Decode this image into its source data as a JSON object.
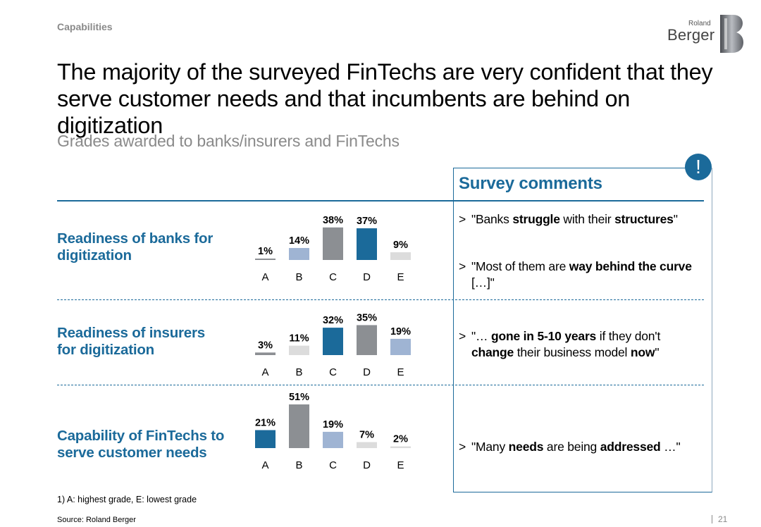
{
  "header": {
    "section": "Capabilities",
    "logo_top": "Roland",
    "logo_bottom": "Berger",
    "headline_line1": "The majority of the surveyed FinTechs are very confident that they",
    "headline_line2": "serve customer needs and that incumbents are behind on digitization",
    "subtitle": "Grades awarded to banks/insurers and FinTechs"
  },
  "colors": {
    "accent": "#1b6a9a",
    "light_blue": "#9fb4d3",
    "gray": "#8c8f93",
    "light_gray": "#dcdcdc"
  },
  "comments_panel": {
    "title": "Survey comments",
    "badge": "!",
    "comments": [
      {
        "marker": ">",
        "parts": [
          {
            "t": "\"Banks ",
            "b": false
          },
          {
            "t": "struggle",
            "b": true
          },
          {
            "t": " with their ",
            "b": false
          },
          {
            "t": "structures",
            "b": true
          },
          {
            "t": "\"",
            "b": false
          }
        ]
      },
      {
        "marker": ">",
        "parts": [
          {
            "t": "\"Most of them are ",
            "b": false
          },
          {
            "t": "way behind the curve",
            "b": true
          },
          {
            "t": " […]\"",
            "b": false
          }
        ]
      },
      {
        "marker": ">",
        "parts": [
          {
            "t": "\"… ",
            "b": false
          },
          {
            "t": "gone in 5-10 years",
            "b": true
          },
          {
            "t": " if they don't ",
            "b": false
          },
          {
            "t": "change",
            "b": true
          },
          {
            "t": " their business model ",
            "b": false
          },
          {
            "t": "now",
            "b": true
          },
          {
            "t": "\"",
            "b": false
          }
        ]
      },
      {
        "marker": ">",
        "parts": [
          {
            "t": "\"Many ",
            "b": false
          },
          {
            "t": "needs",
            "b": true
          },
          {
            "t": " are being ",
            "b": false
          },
          {
            "t": "addressed",
            "b": true
          },
          {
            "t": " …\"",
            "b": false
          }
        ]
      }
    ]
  },
  "rows": [
    {
      "label_line1": "Readiness of banks for",
      "label_line2": "digitization"
    },
    {
      "label_line1": "Readiness of insurers",
      "label_line2": "for digitization"
    },
    {
      "label_line1": "Capability of FinTechs to",
      "label_line2": "serve customer needs"
    }
  ],
  "chart_data": [
    {
      "type": "bar",
      "categories": [
        "A",
        "B",
        "C",
        "D",
        "E"
      ],
      "values": [
        1,
        14,
        38,
        37,
        9
      ],
      "value_labels": [
        "1%",
        "14%",
        "38%",
        "37%",
        "9%"
      ],
      "bar_colors": [
        "gray",
        "light_blue",
        "gray",
        "accent",
        "light_gray"
      ],
      "unit": "%",
      "ylim": [
        0,
        51
      ]
    },
    {
      "type": "bar",
      "categories": [
        "A",
        "B",
        "C",
        "D",
        "E"
      ],
      "values": [
        3,
        11,
        32,
        35,
        19
      ],
      "value_labels": [
        "3%",
        "11%",
        "32%",
        "35%",
        "19%"
      ],
      "bar_colors": [
        "gray",
        "light_gray",
        "accent",
        "gray",
        "light_blue"
      ],
      "unit": "%",
      "ylim": [
        0,
        51
      ]
    },
    {
      "type": "bar",
      "categories": [
        "A",
        "B",
        "C",
        "D",
        "E"
      ],
      "values": [
        21,
        51,
        19,
        7,
        2
      ],
      "value_labels": [
        "21%",
        "51%",
        "19%",
        "7%",
        "2%"
      ],
      "bar_colors": [
        "accent",
        "gray",
        "light_blue",
        "light_gray",
        "light_gray"
      ],
      "unit": "%",
      "ylim": [
        0,
        51
      ]
    }
  ],
  "footer": {
    "footnote": "1) A: highest grade, E: lowest grade",
    "source": "Source: Roland Berger",
    "page_number": "21"
  }
}
